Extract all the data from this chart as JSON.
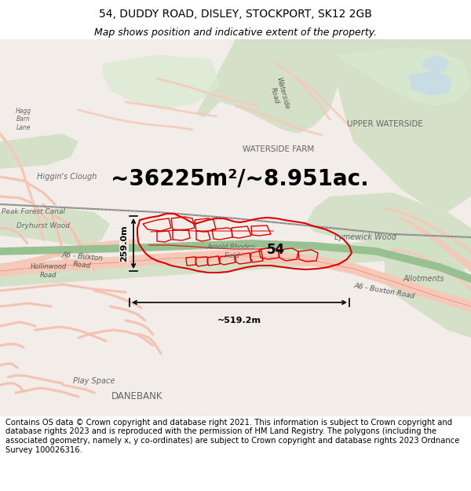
{
  "title_line1": "54, DUDDY ROAD, DISLEY, STOCKPORT, SK12 2GB",
  "title_line2": "Map shows position and indicative extent of the property.",
  "area_text": "~36225m²/~8.951ac.",
  "dim_vertical": "259.0m",
  "dim_horizontal": "~519.2m",
  "label_54": "54",
  "footer_text": "Contains OS data © Crown copyright and database right 2021. This information is subject to Crown copyright and database rights 2023 and is reproduced with the permission of HM Land Registry. The polygons (including the associated geometry, namely x, y co-ordinates) are subject to Crown copyright and database rights 2023 Ordnance Survey 100026316.",
  "fig_width": 6.0,
  "fig_height": 6.25,
  "dpi": 100,
  "bg_color": "#ffffff",
  "map_bg": "#f2ede8",
  "green1": "#cfe0c3",
  "green2": "#bdd4b0",
  "green3": "#d8ead0",
  "blue1": "#c5daea",
  "road_fill": "#f5c8b8",
  "road_border": "#e08878",
  "canal_fill": "#98c090",
  "red_prop": "#dd0000",
  "dim_line_color": "#000000",
  "area_fontsize": 20,
  "title_fontsize": 10,
  "subtitle_fontsize": 9,
  "label54_fontsize": 12,
  "dim_fontsize": 8,
  "footer_fontsize": 7.2,
  "map_label_color": "#666666",
  "road_label_color": "#555555"
}
